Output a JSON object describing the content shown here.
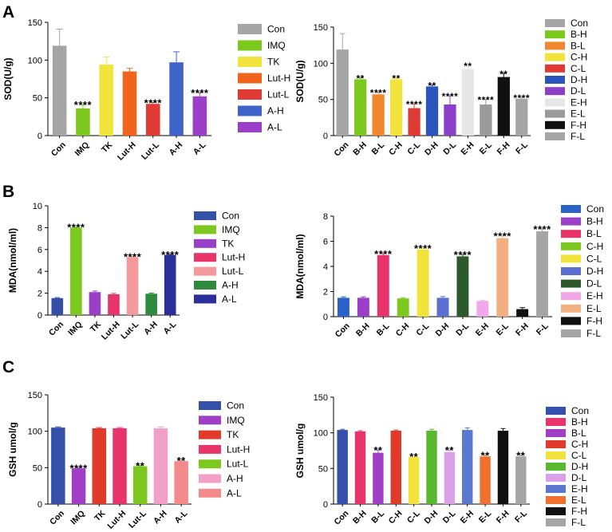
{
  "panels": [
    {
      "letter": "A"
    },
    {
      "letter": "B"
    },
    {
      "letter": "C"
    }
  ],
  "chart_data": [
    {
      "type": "bar",
      "panel": "A",
      "position": "left",
      "ylabel": "SOD(U/g)",
      "ylim": [
        0,
        150
      ],
      "yticks": [
        0,
        50,
        100,
        150
      ],
      "categories": [
        "Con",
        "IMQ",
        "TK",
        "Lut-H",
        "Lut-L",
        "A-H",
        "A-L"
      ],
      "values": [
        119,
        36,
        94,
        85,
        42,
        97,
        52
      ],
      "errors": [
        22,
        5,
        10,
        4,
        2,
        14,
        5
      ],
      "significance": [
        "",
        "****",
        "",
        "",
        "****",
        "",
        "****"
      ],
      "colors": [
        "#a5a5a5",
        "#7cc81e",
        "#f2e33c",
        "#f0641e",
        "#e03a34",
        "#3e63c9",
        "#9b3ec8"
      ],
      "legend": [
        "Con",
        "IMQ",
        "TK",
        "Lut-H",
        "Lut-L",
        "A-H",
        "A-L"
      ]
    },
    {
      "type": "bar",
      "panel": "A",
      "position": "right",
      "ylabel": "SOD(U/g)",
      "ylim": [
        0,
        150
      ],
      "yticks": [
        0,
        50,
        100,
        150
      ],
      "categories": [
        "Con",
        "B-H",
        "B-L",
        "C-H",
        "C-L",
        "D-H",
        "D-L",
        "E-H",
        "E-L",
        "F-H",
        "F-L"
      ],
      "values": [
        119,
        78,
        57,
        78,
        38,
        68,
        43,
        92,
        43,
        81,
        51
      ],
      "errors": [
        22,
        2,
        3,
        2,
        6,
        2,
        12,
        5,
        7,
        5,
        2
      ],
      "significance": [
        "",
        "**",
        "****",
        "**",
        "****",
        "**",
        "****",
        "**",
        "****",
        "**",
        "****"
      ],
      "colors": [
        "#a5a5a5",
        "#7cc81e",
        "#f0862e",
        "#f2e33c",
        "#e03a34",
        "#2b55bd",
        "#8b3ec8",
        "#e6e6e6",
        "#9a9a9a",
        "#101010",
        "#a5a5a5"
      ],
      "legend": [
        "Con",
        "B-H",
        "B-L",
        "C-H",
        "C-L",
        "D-H",
        "D-L",
        "E-H",
        "E-L",
        "F-H",
        "F-L"
      ]
    },
    {
      "type": "bar",
      "panel": "B",
      "position": "left",
      "ylabel": "MDA(nmol/ml)",
      "ylim": [
        0,
        10
      ],
      "yticks": [
        0,
        2,
        4,
        6,
        8,
        10
      ],
      "categories": [
        "Con",
        "IMQ",
        "TK",
        "Lut-H",
        "Lut-L",
        "A-H",
        "A-L"
      ],
      "values": [
        1.55,
        8.0,
        2.1,
        1.9,
        5.3,
        1.95,
        5.5
      ],
      "errors": [
        0.05,
        0.05,
        0.1,
        0.08,
        0.05,
        0.06,
        0.06
      ],
      "significance": [
        "",
        "****",
        "",
        "",
        "****",
        "",
        "****"
      ],
      "colors": [
        "#3450a8",
        "#7cc81e",
        "#9b3ec8",
        "#e8336b",
        "#f59a9a",
        "#2e8b3e",
        "#2a2f9a"
      ],
      "legend": [
        "Con",
        "IMQ",
        "TK",
        "Lut-H",
        "Lut-L",
        "A-H",
        "A-L"
      ]
    },
    {
      "type": "bar",
      "panel": "B",
      "position": "right",
      "ylabel": "MDA(nmol/ml)",
      "ylim": [
        0,
        8
      ],
      "yticks": [
        0,
        2,
        4,
        6,
        8
      ],
      "categories": [
        "Con",
        "B-H",
        "B-L",
        "C-H",
        "C-L",
        "D-H",
        "D-L",
        "E-H",
        "E-L",
        "F-H",
        "F-L"
      ],
      "values": [
        1.5,
        1.5,
        4.9,
        1.45,
        5.35,
        1.5,
        4.8,
        1.25,
        6.25,
        0.6,
        6.8
      ],
      "errors": [
        0.08,
        0.08,
        0.12,
        0.06,
        0.12,
        0.1,
        0.15,
        0.04,
        0.2,
        0.12,
        0.2
      ],
      "significance": [
        "",
        "",
        "****",
        "",
        "****",
        "",
        "****",
        "",
        "****",
        "",
        "****"
      ],
      "colors": [
        "#2b62c9",
        "#9b3ec8",
        "#e8336b",
        "#7cc81e",
        "#f2e33c",
        "#5a6fd0",
        "#2d5a2d",
        "#f2a8e8",
        "#f2b080",
        "#101010",
        "#a5a5a5"
      ],
      "legend": [
        "Con",
        "B-H",
        "B-L",
        "C-H",
        "C-L",
        "D-H",
        "D-L",
        "E-H",
        "E-L",
        "F-H",
        "F-L"
      ]
    },
    {
      "type": "bar",
      "panel": "C",
      "position": "left",
      "ylabel": "GSH umol/g",
      "ylim": [
        0,
        150
      ],
      "yticks": [
        0,
        50,
        100,
        150
      ],
      "categories": [
        "Con",
        "IMQ",
        "TK",
        "Lut-H",
        "Lut-L",
        "A-H",
        "A-L"
      ],
      "values": [
        105,
        49,
        104,
        104,
        52,
        104,
        59
      ],
      "errors": [
        1,
        1,
        1,
        1,
        1,
        2,
        1
      ],
      "significance": [
        "",
        "****",
        "",
        "",
        "**",
        "",
        "**"
      ],
      "colors": [
        "#3450a8",
        "#a03ec8",
        "#e03a2a",
        "#e8336b",
        "#7cc81e",
        "#f2a0c8",
        "#f58a8a"
      ],
      "legend": [
        "Con",
        "IMQ",
        "TK",
        "Lut-H",
        "Lut-L",
        "A-H",
        "A-L"
      ]
    },
    {
      "type": "bar",
      "panel": "C",
      "position": "right",
      "ylabel": "GSH umol/g",
      "ylim": [
        0,
        150
      ],
      "yticks": [
        0,
        50,
        100,
        150
      ],
      "categories": [
        "Con",
        "B-H",
        "B-L",
        "C-H",
        "C-L",
        "D-H",
        "D-L",
        "E-H",
        "E-L",
        "F-H",
        "F-L"
      ],
      "values": [
        104,
        102,
        72,
        103,
        66,
        103,
        73,
        104,
        67,
        103,
        67
      ],
      "errors": [
        1,
        1,
        4,
        1,
        1,
        2,
        3,
        3,
        2,
        3,
        2
      ],
      "significance": [
        "",
        "",
        "**",
        "",
        "**",
        "",
        "**",
        "",
        "**",
        "",
        "**"
      ],
      "colors": [
        "#3450a8",
        "#e8336b",
        "#a03ec8",
        "#e03a2a",
        "#f2e33c",
        "#5ab82e",
        "#d9a0e8",
        "#5a78d0",
        "#f07030",
        "#101010",
        "#a5a5a5"
      ],
      "legend": [
        "Con",
        "B-H",
        "B-L",
        "C-H",
        "C-L",
        "D-H",
        "D-L",
        "E-H",
        "E-L",
        "F-H",
        "F-L"
      ]
    }
  ]
}
